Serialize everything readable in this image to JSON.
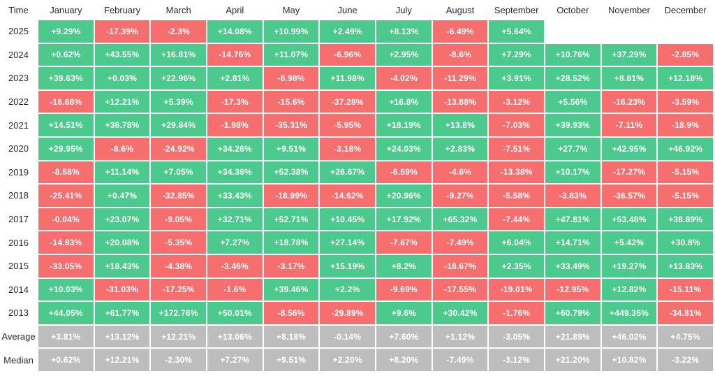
{
  "colors": {
    "positive": "#4CC98C",
    "negative": "#F66E6E",
    "summary": "#BDBDBD",
    "cell_text": "#FFFFFF",
    "header_text": "#262B33",
    "background": "#FFFFFF"
  },
  "chart_data": {
    "type": "heatmap",
    "title": "Monthly returns heatmap",
    "legend_position": "none",
    "grid": false,
    "columns": [
      "Time",
      "January",
      "February",
      "March",
      "April",
      "May",
      "June",
      "July",
      "August",
      "September",
      "October",
      "November",
      "December"
    ],
    "rows": [
      {
        "label": "2025",
        "kind": "year",
        "values": [
          "+9.29%",
          "-17.39%",
          "-2.3%",
          "+14.08%",
          "+10.99%",
          "+2.49%",
          "+8.13%",
          "-6.49%",
          "+5.64%",
          "",
          "",
          ""
        ]
      },
      {
        "label": "2024",
        "kind": "year",
        "values": [
          "+0.62%",
          "+43.55%",
          "+16.81%",
          "-14.76%",
          "+11.07%",
          "-6.96%",
          "+2.95%",
          "-8.6%",
          "+7.29%",
          "+10.76%",
          "+37.29%",
          "-2.85%"
        ]
      },
      {
        "label": "2023",
        "kind": "year",
        "values": [
          "+39.63%",
          "+0.03%",
          "+22.96%",
          "+2.81%",
          "-6.98%",
          "+11.98%",
          "-4.02%",
          "-11.29%",
          "+3.91%",
          "+28.52%",
          "+8.81%",
          "+12.18%"
        ]
      },
      {
        "label": "2022",
        "kind": "year",
        "values": [
          "-16.68%",
          "+12.21%",
          "+5.39%",
          "-17.3%",
          "-15.6%",
          "-37.28%",
          "+16.8%",
          "-13.88%",
          "-3.12%",
          "+5.56%",
          "-16.23%",
          "-3.59%"
        ]
      },
      {
        "label": "2021",
        "kind": "year",
        "values": [
          "+14.51%",
          "+36.78%",
          "+29.84%",
          "-1.98%",
          "-35.31%",
          "-5.95%",
          "+18.19%",
          "+13.8%",
          "-7.03%",
          "+39.93%",
          "-7.11%",
          "-18.9%"
        ]
      },
      {
        "label": "2020",
        "kind": "year",
        "values": [
          "+29.95%",
          "-8.6%",
          "-24.92%",
          "+34.26%",
          "+9.51%",
          "-3.18%",
          "+24.03%",
          "+2.83%",
          "-7.51%",
          "+27.7%",
          "+42.95%",
          "+46.92%"
        ]
      },
      {
        "label": "2019",
        "kind": "year",
        "values": [
          "-8.58%",
          "+11.14%",
          "+7.05%",
          "+34.36%",
          "+52.38%",
          "+26.67%",
          "-6.59%",
          "-4.6%",
          "-13.38%",
          "+10.17%",
          "-17.27%",
          "-5.15%"
        ]
      },
      {
        "label": "2018",
        "kind": "year",
        "values": [
          "-25.41%",
          "+0.47%",
          "-32.85%",
          "+33.43%",
          "-18.99%",
          "-14.62%",
          "+20.96%",
          "-9.27%",
          "-5.58%",
          "-3.83%",
          "-36.57%",
          "-5.15%"
        ]
      },
      {
        "label": "2017",
        "kind": "year",
        "values": [
          "-0.04%",
          "+23.07%",
          "-9.05%",
          "+32.71%",
          "+52.71%",
          "+10.45%",
          "+17.92%",
          "+65.32%",
          "-7.44%",
          "+47.81%",
          "+53.48%",
          "+38.89%"
        ]
      },
      {
        "label": "2016",
        "kind": "year",
        "values": [
          "-14.83%",
          "+20.08%",
          "-5.35%",
          "+7.27%",
          "+18.78%",
          "+27.14%",
          "-7.67%",
          "-7.49%",
          "+6.04%",
          "+14.71%",
          "+5.42%",
          "+30.8%"
        ]
      },
      {
        "label": "2015",
        "kind": "year",
        "values": [
          "-33.05%",
          "+18.43%",
          "-4.38%",
          "-3.46%",
          "-3.17%",
          "+15.19%",
          "+8.2%",
          "-18.67%",
          "+2.35%",
          "+33.49%",
          "+19.27%",
          "+13.83%"
        ]
      },
      {
        "label": "2014",
        "kind": "year",
        "values": [
          "+10.03%",
          "-31.03%",
          "-17.25%",
          "-1.6%",
          "+39.46%",
          "+2.2%",
          "-9.69%",
          "-17.55%",
          "-19.01%",
          "-12.95%",
          "+12.82%",
          "-15.11%"
        ]
      },
      {
        "label": "2013",
        "kind": "year",
        "values": [
          "+44.05%",
          "+61.77%",
          "+172.76%",
          "+50.01%",
          "-8.56%",
          "-29.89%",
          "+9.6%",
          "+30.42%",
          "-1.76%",
          "+60.79%",
          "+449.35%",
          "-34.81%"
        ]
      },
      {
        "label": "Average",
        "kind": "summary",
        "values": [
          "+3.81%",
          "+13.12%",
          "+12.21%",
          "+13.06%",
          "+8.18%",
          "-0.14%",
          "+7.60%",
          "+1.12%",
          "-3.05%",
          "+21.89%",
          "+46.02%",
          "+4.75%"
        ]
      },
      {
        "label": "Median",
        "kind": "summary",
        "values": [
          "+0.62%",
          "+12.21%",
          "-2.30%",
          "+7.27%",
          "+9.51%",
          "+2.20%",
          "+8.20%",
          "-7.49%",
          "-3.12%",
          "+21.20%",
          "+10.82%",
          "-3.22%"
        ]
      }
    ]
  }
}
